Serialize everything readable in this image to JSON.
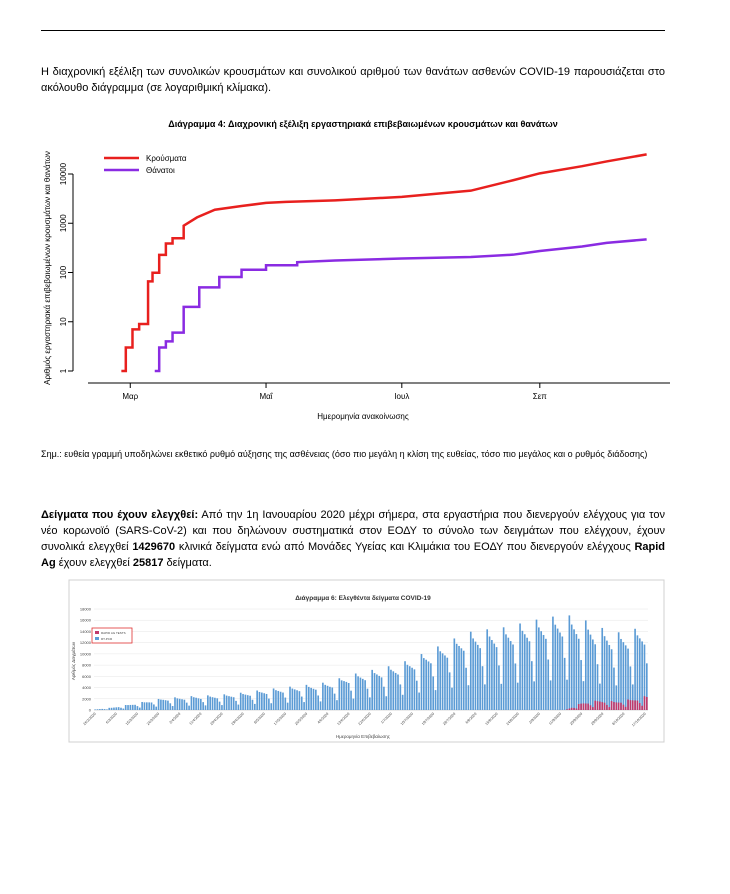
{
  "intro_text": "Η διαχρονική εξέλιξη των συνολικών κρουσμάτων και συνολικού αριθμού των θανάτων ασθενών COVID-19 παρουσιάζεται στο ακόλουθο διάγραμμα (σε λογαριθμική κλίμακα).",
  "note_text": "Σημ.: ευθεία γραμμή υποδηλώνει εκθετικό ρυθμό αύξησης της ασθένειας (όσο πιο μεγάλη η κλίση της ευθείας, τόσο πιο μεγάλος και ο ρυθμός διάδοσης)",
  "samples": {
    "heading": "Δείγματα που έχουν ελεγχθεί:",
    "text_1": " Από την 1η Ιανουαρίου 2020 μέχρι σήμερα, στα εργαστήρια που διενεργούν ελέγχους για τον νέο κορωνοϊό (SARS-CoV-2) και που δηλώνουν συστηματικά στον ΕΟΔΥ το σύνολο των δειγμάτων που ελέγχουν, έχουν συνολικά ελεγχθεί ",
    "pcr_total": "1429670",
    "text_2": " κλινικά δείγματα ενώ από Μονάδες Υγείας και Κλιμάκια του ΕΟΔΥ που διενεργούν ελέγχους ",
    "rapid_label": "Rapid Ag",
    "text_3": " έχουν ελεγχθεί ",
    "rapid_total": "25817",
    "text_4": " δείγματα."
  },
  "chart_data": [
    {
      "type": "line",
      "title": "Διάγραμμα 4: Διαχρονική εξέλιξη εργαστηριακά επιβεβαιωμένων κρουσμάτων και θανάτων",
      "xlabel": "Ημερομηνία ανακοίνωσης",
      "ylabel": "Αριθμός εργαστηριακά επιβεβαιωμένων κρουσμάτων και θανάτων",
      "y_scale": "log",
      "ylim": [
        1,
        30000
      ],
      "y_ticks": [
        "1",
        "10",
        "100",
        "1000",
        "10000"
      ],
      "x_ticks": [
        "Μαρ",
        "Μαΐ",
        "Ιουλ",
        "Σεπ"
      ],
      "legend_position": "top-left",
      "colors": {
        "cases": "#e8201e",
        "deaths": "#8a2be2"
      },
      "series": [
        {
          "name": "Κρούσματα",
          "x": [
            "2020-02-26",
            "2020-02-28",
            "2020-03-02",
            "2020-03-05",
            "2020-03-09",
            "2020-03-11",
            "2020-03-14",
            "2020-03-17",
            "2020-03-20",
            "2020-03-25",
            "2020-03-31",
            "2020-04-08",
            "2020-04-20",
            "2020-05-01",
            "2020-05-10",
            "2020-06-01",
            "2020-07-01",
            "2020-08-01",
            "2020-08-20",
            "2020-09-01",
            "2020-09-20",
            "2020-10-01",
            "2020-10-19"
          ],
          "values": [
            1,
            3,
            7,
            9,
            66,
            99,
            228,
            387,
            495,
            892,
            1314,
            1884,
            2235,
            2591,
            2710,
            2918,
            3432,
            4587,
            7472,
            10317,
            14400,
            18000,
            25000
          ]
        },
        {
          "name": "Θάνατοι",
          "x": [
            "2020-03-12",
            "2020-03-14",
            "2020-03-17",
            "2020-03-20",
            "2020-03-25",
            "2020-04-01",
            "2020-04-10",
            "2020-04-20",
            "2020-05-01",
            "2020-05-15",
            "2020-06-01",
            "2020-07-01",
            "2020-08-01",
            "2020-08-20",
            "2020-09-01",
            "2020-09-20",
            "2020-10-01",
            "2020-10-19"
          ],
          "values": [
            1,
            3,
            4,
            6,
            20,
            50,
            81,
            114,
            140,
            162,
            175,
            192,
            206,
            230,
            273,
            338,
            400,
            470
          ]
        }
      ]
    },
    {
      "type": "bar",
      "title": "Διάγραμμα 6: Ελεγθέντα δείγματα COVID-19",
      "xlabel": "Ημερομηνία Επιβεβαίωσης",
      "ylabel": "Αριθμός Δειγμάτων",
      "ylim": [
        0,
        18000
      ],
      "y_ticks": [
        "0",
        "2000",
        "4000",
        "6000",
        "8000",
        "10000",
        "12000",
        "14000",
        "16000",
        "18000"
      ],
      "x_ticks": [
        "26/2/2020",
        "6/3/2020",
        "15/3/2020",
        "24/3/2020",
        "2/4/2020",
        "11/4/2020",
        "20/4/2020",
        "29/4/2020",
        "8/5/2020",
        "17/5/2020",
        "26/5/2020",
        "4/6/2020",
        "13/6/2020",
        "22/6/2020",
        "1/7/2020",
        "10/7/2020",
        "19/7/2020",
        "28/7/2020",
        "6/8/2020",
        "15/8/2020",
        "24/8/2020",
        "2/9/2020",
        "11/9/2020",
        "20/9/2020",
        "29/9/2020",
        "8/10/2020",
        "17/10/2020"
      ],
      "legend_position": "top-left",
      "colors": {
        "pcr": "#5b9bd5",
        "rapid": "#c0396b"
      },
      "series_names": [
        "RAPID AG TESTS",
        "RT-PCR"
      ],
      "pcr_values_by_week": [
        100,
        400,
        900,
        1400,
        1900,
        2100,
        2300,
        2400,
        2600,
        2900,
        3300,
        3600,
        3900,
        4200,
        4600,
        5600,
        6200,
        6800,
        7400,
        8500,
        9800,
        11000,
        12500,
        13000,
        13200,
        13800,
        14500,
        15000,
        15500,
        14800,
        13500,
        12500,
        13000,
        14000
      ],
      "rapid_values_by_week": [
        0,
        0,
        0,
        0,
        0,
        0,
        0,
        0,
        0,
        0,
        0,
        0,
        0,
        0,
        0,
        0,
        0,
        0,
        0,
        0,
        0,
        0,
        0,
        0,
        0,
        0,
        0,
        0,
        0,
        1200,
        1600,
        1400,
        1800,
        2400
      ]
    }
  ]
}
